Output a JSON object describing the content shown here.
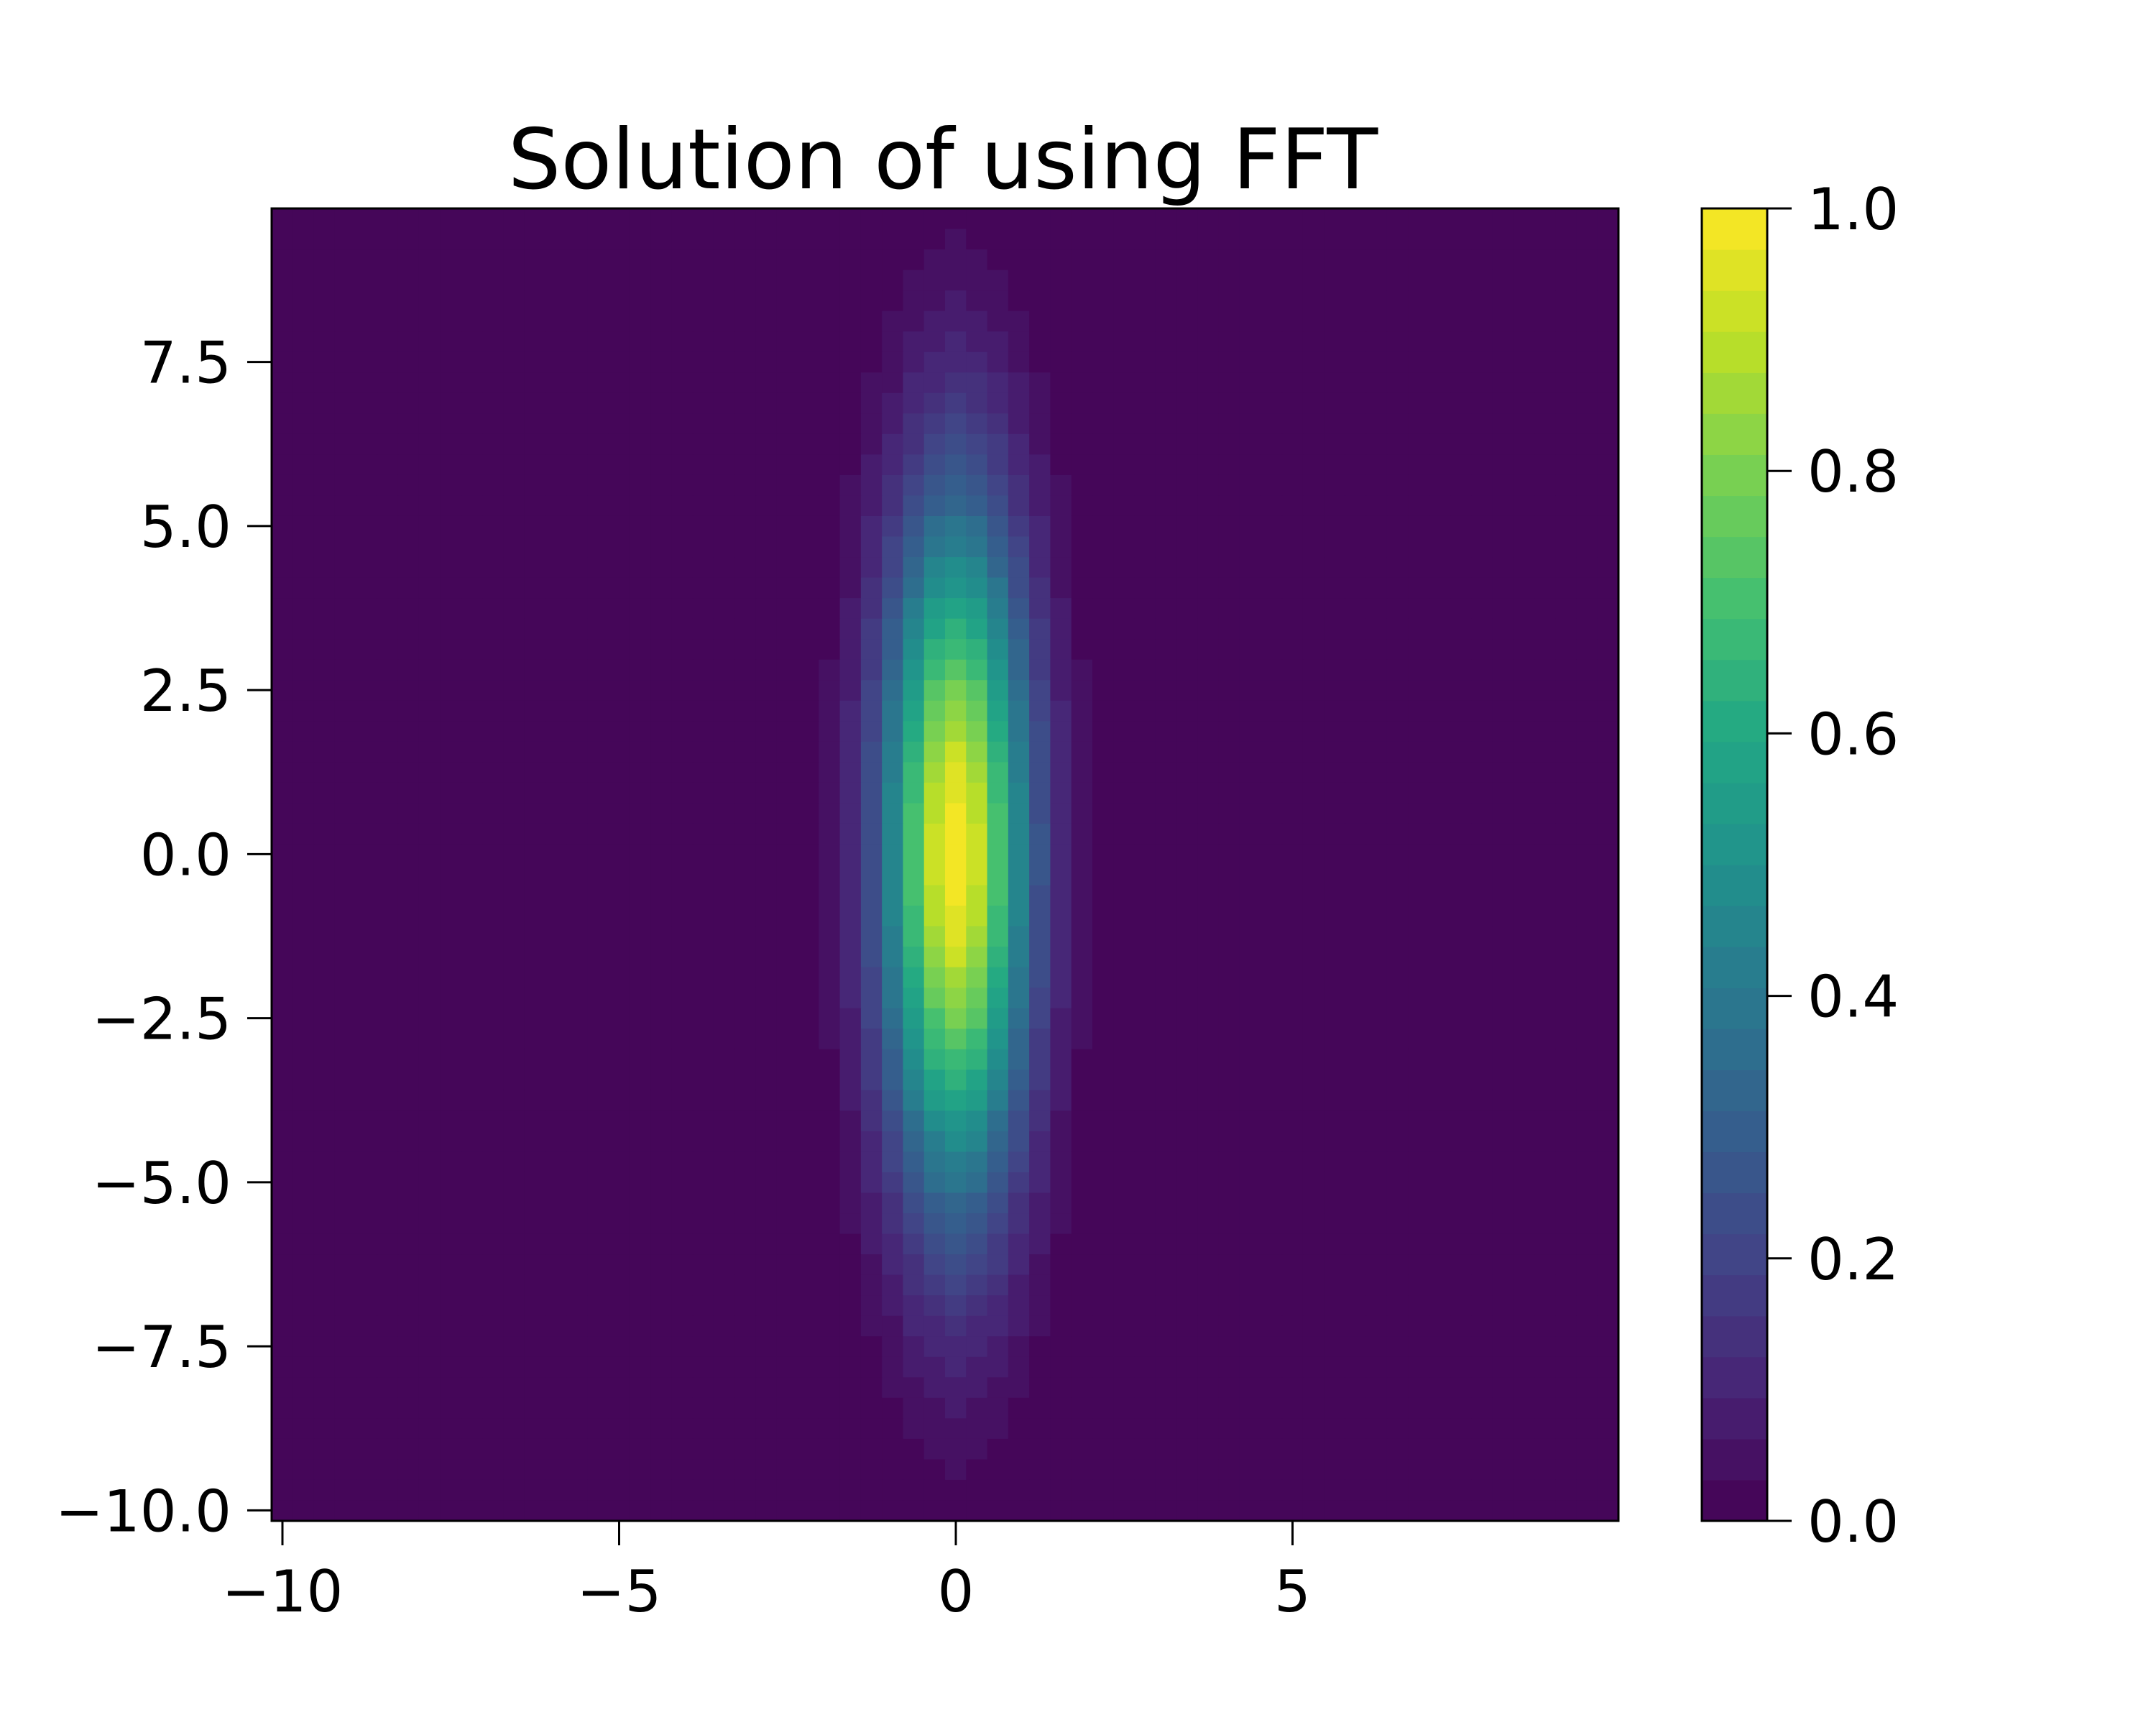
{
  "chart_data": {
    "type": "heatmap",
    "title": "Solution of using FFT",
    "xlabel": "",
    "ylabel": "",
    "x_ticks": [
      -10,
      -5,
      0,
      5
    ],
    "x_tick_labels": [
      "−10",
      "−5",
      "0",
      "5"
    ],
    "y_ticks": [
      -10.0,
      -7.5,
      -5.0,
      -2.5,
      0.0,
      2.5,
      5.0,
      7.5
    ],
    "y_tick_labels": [
      "−10.0",
      "−7.5",
      "−5.0",
      "−2.5",
      "0.0",
      "2.5",
      "5.0",
      "7.5"
    ],
    "xlim": [
      -10.16,
      9.84
    ],
    "ylim": [
      -10.16,
      9.84
    ],
    "grid": false,
    "colormap": "viridis",
    "colorbar": {
      "range": [
        0.0,
        1.0
      ],
      "levels": 32,
      "ticks": [
        0.0,
        0.2,
        0.4,
        0.6,
        0.8,
        1.0
      ],
      "tick_labels": [
        "0.0",
        "0.2",
        "0.4",
        "0.6",
        "0.8",
        "1.0"
      ]
    },
    "field": {
      "description": "approximately gaussian peak",
      "center_x": 0.0,
      "center_y": 0.0,
      "sigma_x": 0.75,
      "sigma_y": 3.6,
      "peak_value": 1.0,
      "grid_cells": 64
    }
  }
}
